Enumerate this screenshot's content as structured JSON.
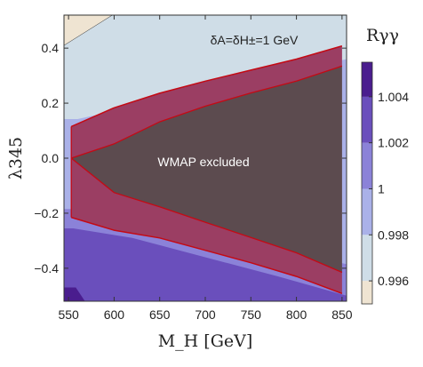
{
  "chart_data": {
    "type": "area",
    "xlabel": "M_H [GeV]",
    "ylabel": "λ345",
    "colorbar_label": "Rγγ",
    "annotation": "δA=δH±=1 GeV",
    "region_label": "WMAP  excluded",
    "xlim": [
      545,
      855
    ],
    "ylim": [
      -0.52,
      0.52
    ],
    "x_ticks": [
      550,
      600,
      650,
      700,
      750,
      800,
      850
    ],
    "y_ticks": [
      0.4,
      0.2,
      0.0,
      -0.2,
      -0.4
    ],
    "x_tick_labels": [
      "550",
      "600",
      "650",
      "700",
      "750",
      "800",
      "850"
    ],
    "y_tick_labels": [
      "0.4",
      "0.2",
      "0.0",
      "−0.2",
      "−0.4"
    ],
    "colorbar_ticks": [
      {
        "label": "1.004",
        "value": 1.004
      },
      {
        "label": "1.002",
        "value": 1.002
      },
      {
        "label": "1",
        "value": 1.0
      },
      {
        "label": "0.998",
        "value": 0.998
      },
      {
        "label": "0.996",
        "value": 0.996
      }
    ],
    "colorbar_range": [
      0.995,
      1.0055
    ],
    "colorbar_bands": [
      {
        "from": 0.995,
        "to": 0.996,
        "color": "#efe4d2"
      },
      {
        "from": 0.996,
        "to": 0.998,
        "color": "#cfdde7"
      },
      {
        "from": 0.998,
        "to": 1.0,
        "color": "#aab1e8"
      },
      {
        "from": 1.0,
        "to": 1.002,
        "color": "#8b82d8"
      },
      {
        "from": 1.002,
        "to": 1.004,
        "color": "#6a4fbc"
      },
      {
        "from": 1.004,
        "to": 1.0055,
        "color": "#4a1d8e"
      }
    ],
    "regions": [
      {
        "name": "R 0.996-0.998",
        "color": "#cfdde7",
        "x": [
          545,
          855,
          855,
          545
        ],
        "y": [
          0.52,
          0.52,
          -0.52,
          -0.52
        ]
      },
      {
        "name": "R < 0.996",
        "color": "#efe4d2",
        "x": [
          545,
          598,
          545
        ],
        "y": [
          0.52,
          0.52,
          0.41
        ]
      },
      {
        "name": "R 0.998-1.0",
        "color": "#aab1e8",
        "x": [
          545,
          560,
          855,
          855,
          545
        ],
        "y": [
          0.142,
          0.142,
          0.36,
          -0.52,
          -0.52
        ]
      },
      {
        "name": "R 1.0-1.002",
        "color": "#8b82d8",
        "x": [
          545,
          565,
          855,
          855,
          545
        ],
        "y": [
          -0.185,
          -0.185,
          -0.385,
          -0.52,
          -0.52
        ]
      },
      {
        "name": "R 1.002-1.004",
        "color": "#6a4fbc",
        "x": [
          545,
          555,
          620,
          700,
          780,
          855,
          855,
          545
        ],
        "y": [
          -0.255,
          -0.255,
          -0.29,
          -0.36,
          -0.43,
          -0.5,
          -0.52,
          -0.52
        ]
      },
      {
        "name": "R > 1.004",
        "color": "#4a1d8e",
        "x": [
          545,
          558,
          568,
          545
        ],
        "y": [
          -0.47,
          -0.47,
          -0.52,
          -0.52
        ]
      }
    ],
    "band_upper": {
      "x": [
        553,
        600,
        650,
        700,
        750,
        800,
        850
      ],
      "y_outer": [
        0.115,
        0.183,
        0.236,
        0.28,
        0.32,
        0.36,
        0.408
      ],
      "y_inner": [
        0.0,
        0.052,
        0.132,
        0.189,
        0.237,
        0.28,
        0.335
      ]
    },
    "band_lower": {
      "x": [
        553,
        600,
        650,
        700,
        750,
        800,
        850
      ],
      "y_inner": [
        0.0,
        -0.125,
        -0.177,
        -0.233,
        -0.288,
        -0.344,
        -0.415
      ],
      "y_outer": [
        -0.215,
        -0.262,
        -0.29,
        -0.335,
        -0.38,
        -0.43,
        -0.492
      ]
    },
    "excluded_color": "#5c4b4f",
    "band_color": "#9b3e63",
    "band_edge_color": "#c40a14",
    "grid": false
  }
}
